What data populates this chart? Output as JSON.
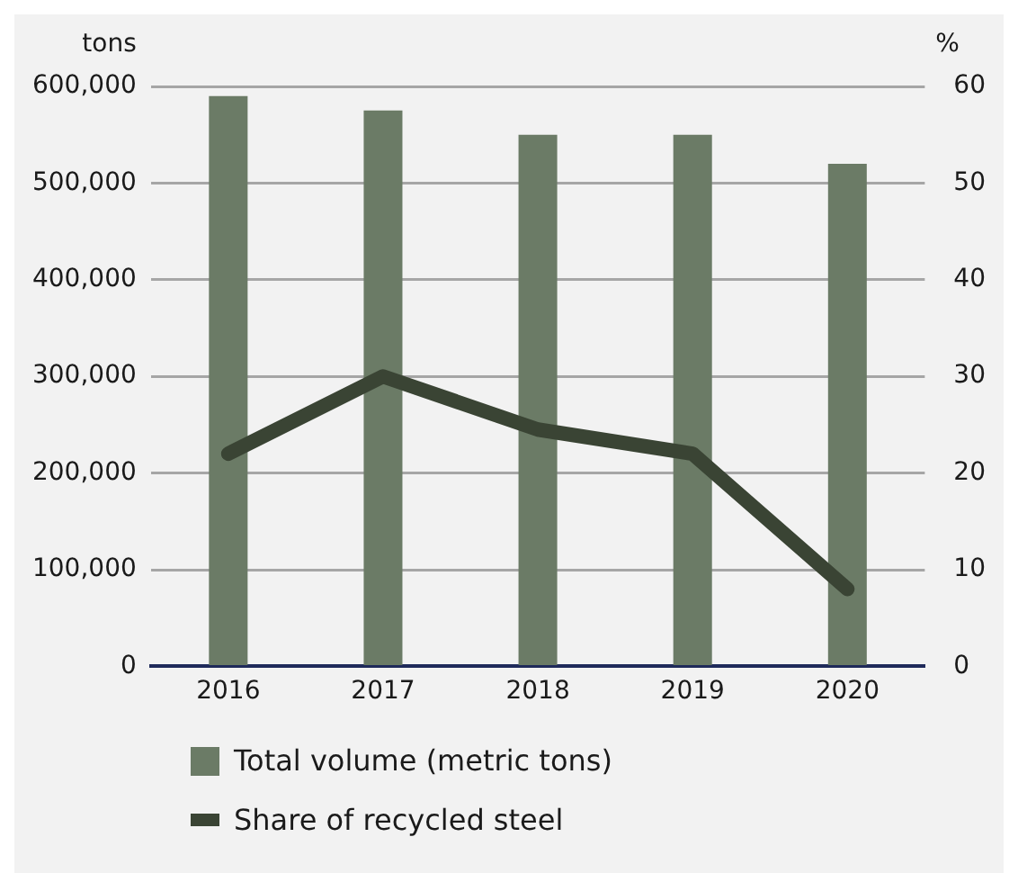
{
  "chart_data": {
    "type": "bar",
    "categories": [
      "2016",
      "2017",
      "2018",
      "2019",
      "2020"
    ],
    "ylabel": "tons",
    "y2label": "%",
    "series": [
      {
        "name": "Total volume (metric tons)",
        "color": "#6b7b66",
        "values": [
          590000,
          575000,
          550000,
          550000,
          520000
        ]
      },
      {
        "name": "Share of recycled steel",
        "type": "line",
        "axis": "y2",
        "color": "#3a4434",
        "values": [
          22,
          30,
          24.5,
          22,
          8
        ]
      }
    ],
    "ylim": [
      0,
      600000
    ],
    "yticks": [
      0,
      {
        "value": 100000,
        "label": "100,000"
      },
      {
        "value": 200000,
        "label": "200,000"
      },
      {
        "value": 300000,
        "label": "300,000"
      },
      {
        "value": 400000,
        "label": "400,000"
      },
      {
        "value": 500000,
        "label": "500,000"
      },
      {
        "value": 600000,
        "label": "600,000"
      }
    ],
    "y2lim": [
      0,
      60
    ],
    "y2ticks": [
      0,
      10,
      20,
      30,
      40,
      50,
      60
    ],
    "grid": "y",
    "legend": "bottom",
    "marker": "none"
  }
}
